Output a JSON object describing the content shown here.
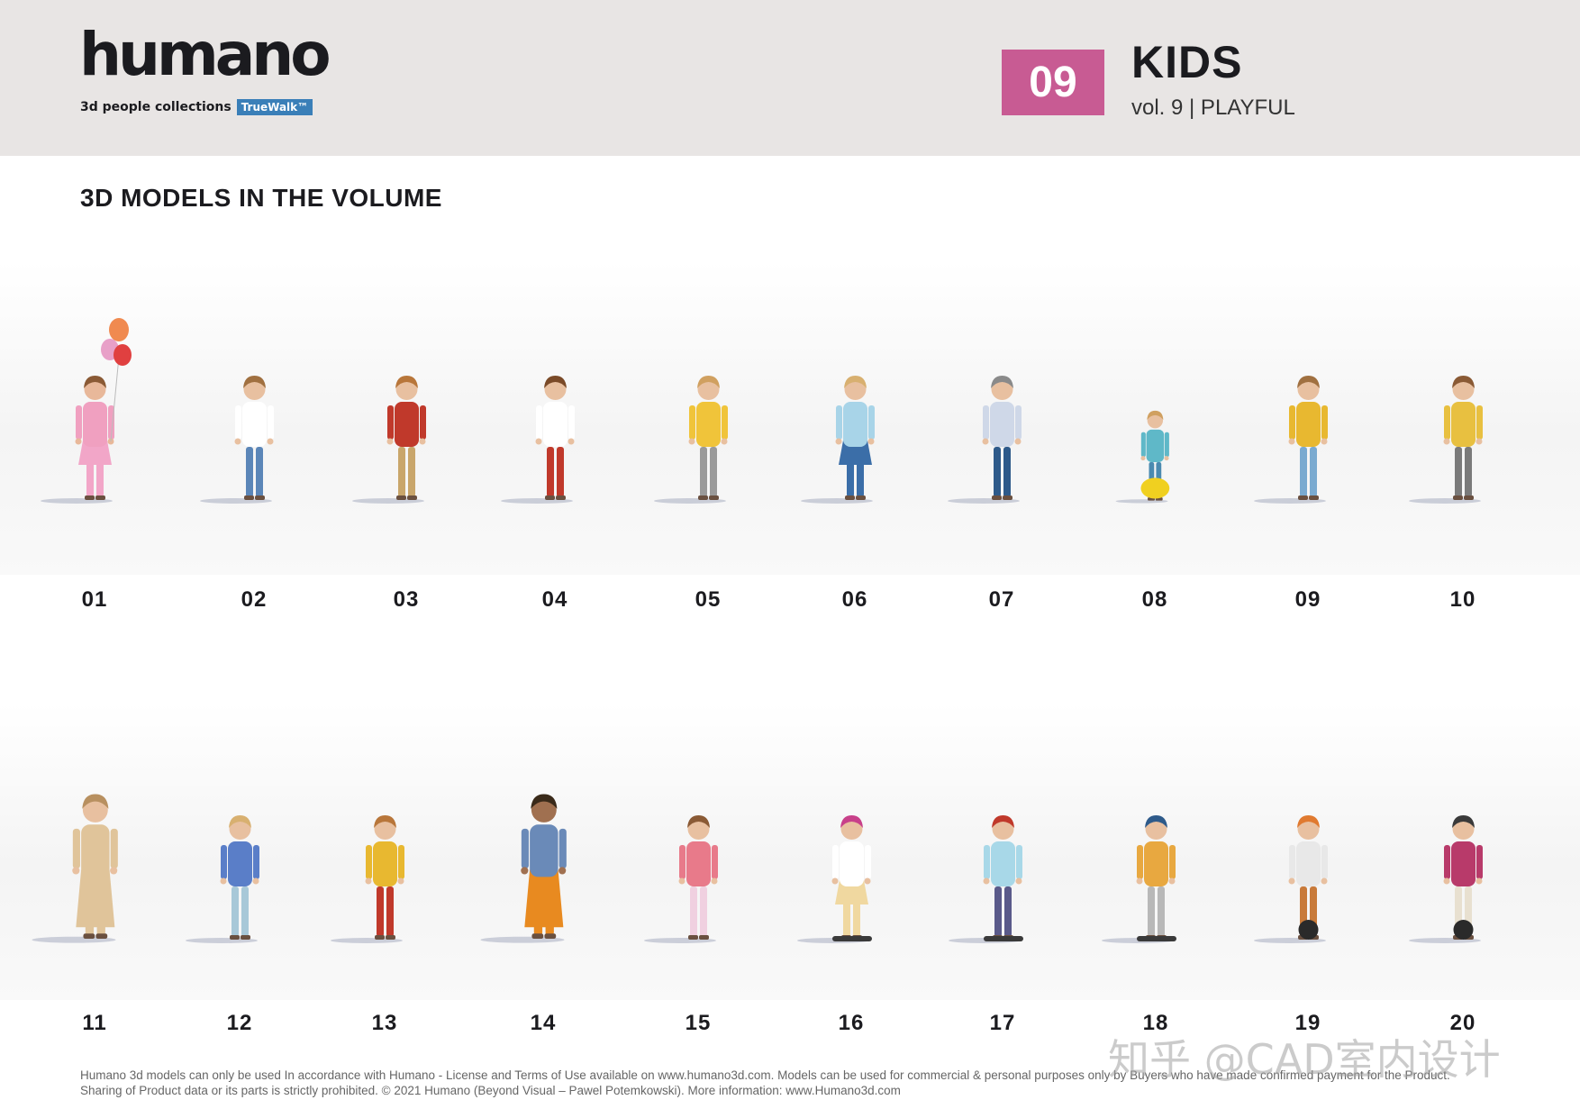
{
  "header": {
    "logo_text": "humano",
    "logo_tagline": "3d people collections",
    "logo_badge": "TrueWalk™",
    "volume_number": "09",
    "collection_title": "KIDS",
    "collection_subtitle": "vol. 9 | PLAYFUL"
  },
  "section_heading": "3D MODELS IN THE VOLUME",
  "colors": {
    "header_bg": "#e8e5e4",
    "accent": "#c85b93",
    "badge": "#3a7fb8"
  },
  "models_row1": [
    {
      "label": "01",
      "top": "#f0a0c0",
      "bottom": "#f2a6c8",
      "skin": "#e8b89a",
      "hair": "#8a5a35",
      "extra": "balloons"
    },
    {
      "label": "02",
      "top": "#ffffff",
      "bottom": "#5b86b8",
      "skin": "#e8c0a0",
      "hair": "#a07040"
    },
    {
      "label": "03",
      "top": "#c0392b",
      "bottom": "#c9a66b",
      "skin": "#e8c0a0",
      "hair": "#b8763a"
    },
    {
      "label": "04",
      "top": "#ffffff",
      "bottom": "#c0392b",
      "skin": "#e8c0a0",
      "hair": "#7a4a28"
    },
    {
      "label": "05",
      "top": "#f0c43a",
      "bottom": "#9a9a9a",
      "skin": "#e8c0a0",
      "hair": "#d0a060"
    },
    {
      "label": "06",
      "top": "#a8d4e8",
      "bottom": "#3b6ea8",
      "skin": "#e8c0a0",
      "hair": "#d8b070"
    },
    {
      "label": "07",
      "top": "#cfd8e8",
      "bottom": "#2e5a8a",
      "skin": "#e8c0a0",
      "hair": "#8a8a8a"
    },
    {
      "label": "08",
      "top": "#5fb8c8",
      "bottom": "#4a8ab0",
      "skin": "#e8c0a0",
      "hair": "#d0a060",
      "extra": "ride"
    },
    {
      "label": "09",
      "top": "#e8b830",
      "bottom": "#7aaad0",
      "skin": "#e8c0a0",
      "hair": "#a07040"
    },
    {
      "label": "10",
      "top": "#e8c040",
      "bottom": "#7a7a7a",
      "skin": "#e8c0a0",
      "hair": "#8a5a35"
    }
  ],
  "models_row2": [
    {
      "label": "11",
      "top": "#e0c49a",
      "bottom": "#e0c49a",
      "skin": "#e8c0a0",
      "hair": "#b89060",
      "extra": "adult"
    },
    {
      "label": "12",
      "top": "#5a7ec8",
      "bottom": "#a8c8d8",
      "skin": "#e8c0a0",
      "hair": "#d8b070"
    },
    {
      "label": "13",
      "top": "#e8b830",
      "bottom": "#c0392b",
      "skin": "#e8c0a0",
      "hair": "#b8763a"
    },
    {
      "label": "14",
      "top": "#6a8ab8",
      "bottom": "#e88a20",
      "skin": "#a07050",
      "hair": "#3a2a1a",
      "extra": "adult"
    },
    {
      "label": "15",
      "top": "#e87a8a",
      "bottom": "#f0d0e0",
      "skin": "#e8c0a0",
      "hair": "#8a5a35"
    },
    {
      "label": "16",
      "top": "#ffffff",
      "bottom": "#f0d8a0",
      "skin": "#e8c0a0",
      "hair": "#c8408a",
      "extra": "board"
    },
    {
      "label": "17",
      "top": "#a8d8e8",
      "bottom": "#5a5a8a",
      "skin": "#e8c0a0",
      "hair": "#c0392b",
      "extra": "board"
    },
    {
      "label": "18",
      "top": "#e8a840",
      "bottom": "#b8b8b8",
      "skin": "#e8c0a0",
      "hair": "#2e5a8a",
      "extra": "board"
    },
    {
      "label": "19",
      "top": "#e8e8e8",
      "bottom": "#c87a3a",
      "skin": "#e8c0a0",
      "hair": "#e07a30",
      "extra": "wheel"
    },
    {
      "label": "20",
      "top": "#b83a6a",
      "bottom": "#e8e0d0",
      "skin": "#e8c0a0",
      "hair": "#3a3a3a",
      "extra": "wheel"
    }
  ],
  "footer_text": "Humano 3d models can only be used In accordance with Humano - License and Terms of Use available on www.humano3d.com. Models can be used for commercial & personal purposes only by Buyers who have made confirmed payment for the Product. Sharing of Product data or its parts is strictly prohibited. © 2021 Humano (Beyond Visual – Pawel Potemkowski). More information: www.Humano3d.com",
  "watermark_text": "知乎 @CAD室内设计"
}
